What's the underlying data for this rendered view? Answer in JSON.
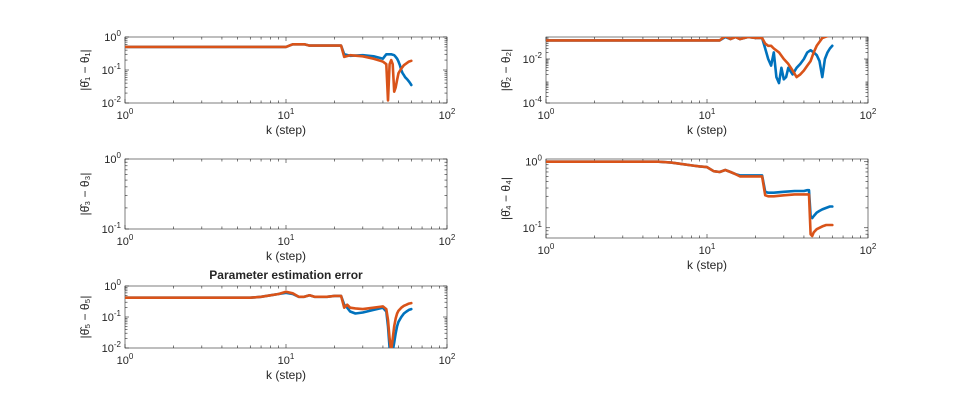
{
  "chart_data": [
    {
      "type": "line",
      "panel": "theta1",
      "xscale": "log",
      "yscale": "log",
      "xlim": [
        1,
        100
      ],
      "ylim": [
        0.01,
        1
      ],
      "xticks": [
        {
          "v": 1,
          "b": "10",
          "e": "0"
        },
        {
          "v": 10,
          "b": "10",
          "e": "1"
        },
        {
          "v": 100,
          "b": "10",
          "e": "2"
        }
      ],
      "yticks": [
        {
          "v": 0.01,
          "b": "10",
          "e": "-2"
        },
        {
          "v": 0.1,
          "b": "10",
          "e": "-1"
        },
        {
          "v": 1,
          "b": "10",
          "e": "0"
        }
      ],
      "xlabel": "k (step)",
      "ylabel": "|θ̂₁ − θ₁|",
      "title": "",
      "series": [
        {
          "color": "#0072BD",
          "x": [
            1,
            10,
            11,
            13,
            14,
            22,
            23,
            25,
            30,
            35,
            40,
            41,
            42,
            43,
            44,
            45,
            46,
            47,
            48,
            49,
            50,
            51,
            52,
            53,
            54,
            55,
            56,
            57,
            58,
            59,
            60
          ],
          "y": [
            0.5,
            0.5,
            0.6,
            0.6,
            0.55,
            0.55,
            0.3,
            0.27,
            0.28,
            0.26,
            0.22,
            0.26,
            0.3,
            0.3,
            0.3,
            0.3,
            0.29,
            0.28,
            0.25,
            0.22,
            0.18,
            0.14,
            0.1,
            0.08,
            0.07,
            0.06,
            0.055,
            0.05,
            0.045,
            0.04,
            0.035
          ]
        },
        {
          "color": "#D95319",
          "x": [
            1,
            10,
            11,
            13,
            14,
            22,
            23,
            25,
            30,
            35,
            40,
            42,
            43,
            44,
            45,
            46,
            47,
            48,
            49,
            50,
            52,
            54,
            56,
            58,
            60
          ],
          "y": [
            0.5,
            0.5,
            0.6,
            0.6,
            0.55,
            0.55,
            0.25,
            0.28,
            0.26,
            0.22,
            0.18,
            0.15,
            0.012,
            0.15,
            0.2,
            0.15,
            0.022,
            0.03,
            0.05,
            0.08,
            0.11,
            0.14,
            0.16,
            0.18,
            0.19
          ]
        }
      ]
    },
    {
      "type": "line",
      "panel": "theta2",
      "xscale": "log",
      "yscale": "log",
      "xlim": [
        1,
        100
      ],
      "ylim": [
        0.0001,
        0.1
      ],
      "xticks": [
        {
          "v": 1,
          "b": "10",
          "e": "0"
        },
        {
          "v": 10,
          "b": "10",
          "e": "1"
        },
        {
          "v": 100,
          "b": "10",
          "e": "2"
        }
      ],
      "yticks": [
        {
          "v": 0.0001,
          "b": "10",
          "e": "-4"
        },
        {
          "v": 0.01,
          "b": "10",
          "e": "-2"
        }
      ],
      "xlabel": "k (step)",
      "ylabel": "|θ̂₂ − θ₂|",
      "title": "",
      "series": [
        {
          "color": "#0072BD",
          "x": [
            1,
            10,
            12,
            13,
            14,
            15,
            16,
            18,
            20,
            22,
            23,
            24,
            25,
            26,
            27,
            28,
            29,
            30,
            31,
            32,
            34,
            36,
            38,
            40,
            42,
            44,
            46,
            48,
            50,
            52,
            54,
            56,
            58,
            60
          ],
          "y": [
            0.07,
            0.07,
            0.07,
            0.1,
            0.08,
            0.1,
            0.08,
            0.1,
            0.09,
            0.09,
            0.03,
            0.01,
            0.005,
            0.02,
            0.0015,
            0.0008,
            0.004,
            0.0012,
            0.0015,
            0.004,
            0.002,
            0.004,
            0.006,
            0.01,
            0.02,
            0.025,
            0.02,
            0.015,
            0.008,
            0.0015,
            0.01,
            0.02,
            0.03,
            0.04
          ]
        },
        {
          "color": "#D95319",
          "x": [
            1,
            10,
            12,
            13,
            14,
            15,
            16,
            18,
            20,
            22,
            23,
            24,
            25,
            26,
            28,
            30,
            32,
            34,
            36,
            38,
            40,
            42,
            44,
            46,
            48,
            50,
            52,
            54,
            56,
            58,
            60
          ],
          "y": [
            0.07,
            0.07,
            0.07,
            0.11,
            0.08,
            0.1,
            0.08,
            0.1,
            0.09,
            0.09,
            0.05,
            0.04,
            0.04,
            0.03,
            0.02,
            0.01,
            0.006,
            0.003,
            0.0015,
            0.002,
            0.003,
            0.005,
            0.008,
            0.02,
            0.04,
            0.06,
            0.09,
            0.1,
            0.11,
            0.12,
            0.12
          ]
        }
      ]
    },
    {
      "type": "line",
      "panel": "theta3",
      "xscale": "log",
      "yscale": "log",
      "xlim": [
        1,
        100
      ],
      "ylim": [
        0.1,
        1
      ],
      "xticks": [
        {
          "v": 1,
          "b": "10",
          "e": "0"
        },
        {
          "v": 10,
          "b": "10",
          "e": "1"
        },
        {
          "v": 100,
          "b": "10",
          "e": "2"
        }
      ],
      "yticks": [
        {
          "v": 0.1,
          "b": "10",
          "e": "-1"
        },
        {
          "v": 1,
          "b": "10",
          "e": "0"
        }
      ],
      "xlabel": "k (step)",
      "ylabel": "|θ̂₃ − θ₃|",
      "title": "",
      "series": []
    },
    {
      "type": "line",
      "panel": "theta4",
      "xscale": "log",
      "yscale": "log",
      "xlim": [
        1,
        100
      ],
      "ylim": [
        0.07,
        1.1
      ],
      "xticks": [
        {
          "v": 1,
          "b": "10",
          "e": "0"
        },
        {
          "v": 10,
          "b": "10",
          "e": "1"
        },
        {
          "v": 100,
          "b": "10",
          "e": "2"
        }
      ],
      "yticks": [
        {
          "v": 0.1,
          "b": "10",
          "e": "-1"
        },
        {
          "v": 1,
          "b": "10",
          "e": "0"
        }
      ],
      "xlabel": "k (step)",
      "ylabel": "|θ̂₄ − θ₄|",
      "title": "",
      "series": [
        {
          "color": "#0072BD",
          "x": [
            1,
            5,
            6,
            7,
            8,
            9,
            10,
            11,
            12,
            13,
            14,
            15,
            16,
            17,
            18,
            19,
            20,
            21,
            22,
            23,
            24,
            26,
            30,
            35,
            40,
            42,
            43,
            44,
            45,
            46,
            48,
            50,
            52,
            55,
            58,
            60
          ],
          "y": [
            1,
            1,
            0.97,
            0.92,
            0.88,
            0.85,
            0.83,
            0.72,
            0.7,
            0.75,
            0.7,
            0.65,
            0.62,
            0.62,
            0.62,
            0.62,
            0.62,
            0.62,
            0.62,
            0.35,
            0.34,
            0.34,
            0.35,
            0.36,
            0.36,
            0.37,
            0.37,
            0.15,
            0.14,
            0.15,
            0.17,
            0.18,
            0.19,
            0.2,
            0.21,
            0.21
          ]
        },
        {
          "color": "#D95319",
          "x": [
            1,
            5,
            6,
            7,
            8,
            9,
            10,
            11,
            12,
            13,
            14,
            15,
            16,
            17,
            18,
            19,
            20,
            21,
            22,
            23,
            24,
            26,
            30,
            35,
            40,
            42,
            43,
            44,
            45,
            46,
            48,
            50,
            52,
            55,
            58,
            60
          ],
          "y": [
            1,
            1,
            0.97,
            0.92,
            0.88,
            0.85,
            0.83,
            0.72,
            0.7,
            0.75,
            0.7,
            0.65,
            0.6,
            0.6,
            0.6,
            0.6,
            0.6,
            0.6,
            0.6,
            0.31,
            0.3,
            0.3,
            0.31,
            0.32,
            0.32,
            0.32,
            0.32,
            0.08,
            0.075,
            0.085,
            0.095,
            0.1,
            0.105,
            0.11,
            0.11,
            0.11
          ]
        }
      ]
    },
    {
      "type": "line",
      "panel": "theta5",
      "xscale": "log",
      "yscale": "log",
      "xlim": [
        1,
        100
      ],
      "ylim": [
        0.01,
        1
      ],
      "xticks": [
        {
          "v": 1,
          "b": "10",
          "e": "0"
        },
        {
          "v": 10,
          "b": "10",
          "e": "1"
        },
        {
          "v": 100,
          "b": "10",
          "e": "2"
        }
      ],
      "yticks": [
        {
          "v": 0.01,
          "b": "10",
          "e": "-2"
        },
        {
          "v": 0.1,
          "b": "10",
          "e": "-1"
        },
        {
          "v": 1,
          "b": "10",
          "e": "0"
        }
      ],
      "xlabel": "k (step)",
      "ylabel": "|θ̂₅ − θ₅|",
      "title": "Parameter estimation error",
      "series": [
        {
          "color": "#0072BD",
          "x": [
            1,
            6,
            7,
            8,
            9,
            10,
            11,
            12,
            13,
            14,
            15,
            18,
            20,
            22,
            23,
            24,
            25,
            27,
            30,
            35,
            40,
            42,
            43,
            44,
            45,
            46,
            47,
            48,
            49,
            50,
            52,
            54,
            56,
            58,
            60
          ],
          "y": [
            0.42,
            0.42,
            0.45,
            0.5,
            0.55,
            0.6,
            0.55,
            0.45,
            0.45,
            0.5,
            0.45,
            0.45,
            0.48,
            0.48,
            0.25,
            0.2,
            0.15,
            0.13,
            0.14,
            0.17,
            0.2,
            0.15,
            0.05,
            0.01,
            0.005,
            0.008,
            0.015,
            0.03,
            0.05,
            0.07,
            0.1,
            0.13,
            0.15,
            0.17,
            0.18
          ]
        },
        {
          "color": "#D95319",
          "x": [
            1,
            6,
            7,
            8,
            9,
            10,
            11,
            12,
            13,
            14,
            15,
            18,
            20,
            22,
            23,
            24,
            25,
            27,
            30,
            35,
            40,
            42,
            43,
            44,
            45,
            46,
            47,
            48,
            49,
            50,
            52,
            54,
            56,
            58,
            60
          ],
          "y": [
            0.42,
            0.42,
            0.45,
            0.5,
            0.55,
            0.65,
            0.58,
            0.45,
            0.45,
            0.5,
            0.45,
            0.45,
            0.48,
            0.48,
            0.2,
            0.25,
            0.2,
            0.19,
            0.18,
            0.2,
            0.22,
            0.18,
            0.08,
            0.02,
            0.008,
            0.02,
            0.05,
            0.09,
            0.13,
            0.16,
            0.2,
            0.23,
            0.25,
            0.27,
            0.28
          ]
        }
      ]
    }
  ]
}
